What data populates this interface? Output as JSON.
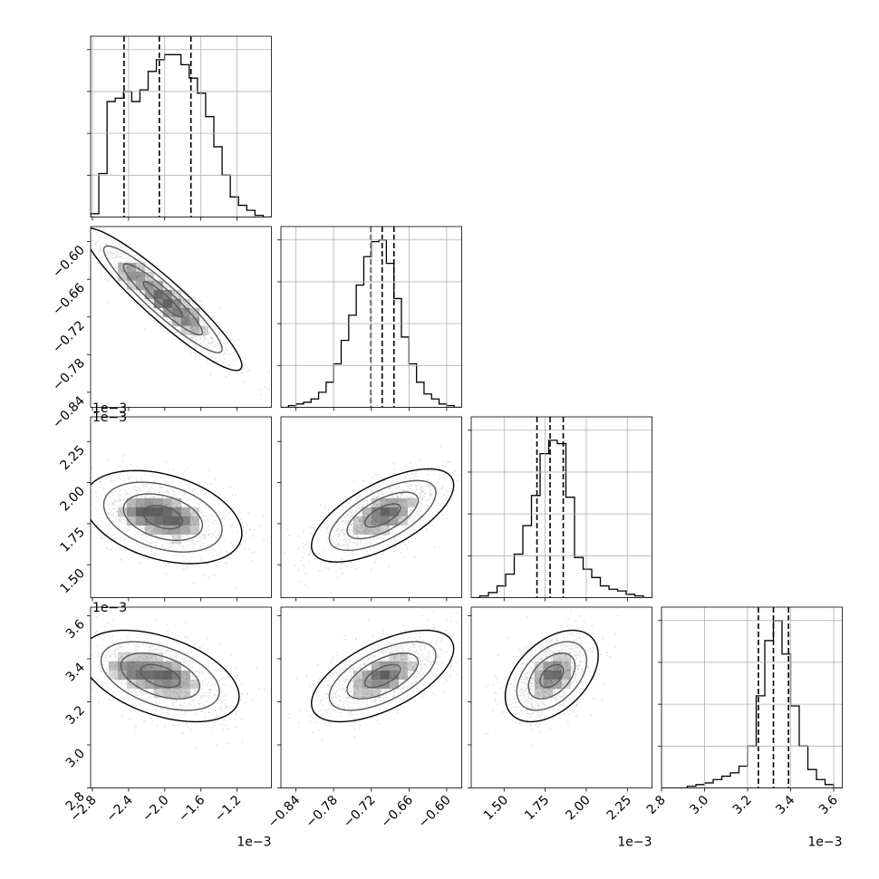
{
  "chart_data": {
    "type": "corner",
    "grid": true,
    "parameters": [
      {
        "range": [
          -2.82,
          -0.82
        ],
        "ticks": [
          -2.8,
          -2.4,
          -2.0,
          -1.6,
          -1.2
        ],
        "tick_labels": [
          "−2.8",
          "−2.4",
          "−2.0",
          "−1.6",
          "−1.2"
        ],
        "offset_label": "1e−3",
        "quantiles": [
          -2.45,
          -2.06,
          -1.71
        ],
        "hist": [
          0.02,
          0.26,
          0.69,
          0.71,
          0.75,
          0.69,
          0.76,
          0.87,
          0.94,
          0.97,
          0.97,
          0.91,
          0.83,
          0.74,
          0.6,
          0.42,
          0.25,
          0.12,
          0.07,
          0.04,
          0.01,
          0.0
        ],
        "ylim": [
          0,
          1.08
        ]
      },
      {
        "range": [
          -0.864,
          -0.576
        ],
        "ticks": [
          -0.84,
          -0.78,
          -0.72,
          -0.66,
          -0.6
        ],
        "tick_labels": [
          "−0.84",
          "−0.78",
          "−0.72",
          "−0.66",
          "−0.60"
        ],
        "offset_label": "",
        "quantiles": [
          -0.7206,
          -0.7027,
          -0.6839
        ],
        "hist": [
          0.0,
          0.01,
          0.02,
          0.03,
          0.05,
          0.09,
          0.15,
          0.26,
          0.4,
          0.55,
          0.73,
          0.9,
          0.99,
          1.0,
          0.86,
          0.65,
          0.42,
          0.26,
          0.15,
          0.08,
          0.05,
          0.02,
          0.01,
          0.0
        ],
        "ylim": [
          0,
          1.08
        ]
      },
      {
        "range": [
          1.3,
          2.4
        ],
        "ticks": [
          1.5,
          1.75,
          2.0,
          2.25
        ],
        "tick_labels": [
          "1.50",
          "1.75",
          "2.00",
          "2.25"
        ],
        "offset_label": "1e−3",
        "quantiles": [
          1.7,
          1.78,
          1.86
        ],
        "hist": [
          0.0,
          0.01,
          0.03,
          0.07,
          0.14,
          0.26,
          0.43,
          0.61,
          0.86,
          0.94,
          0.92,
          0.6,
          0.24,
          0.17,
          0.12,
          0.07,
          0.05,
          0.04,
          0.02,
          0.01,
          0.0
        ],
        "ylim": [
          0,
          1.08
        ]
      },
      {
        "range": [
          2.8,
          3.64
        ],
        "ticks": [
          2.8,
          3.0,
          3.2,
          3.4,
          3.6
        ],
        "tick_labels": [
          "2.8",
          "3.0",
          "3.2",
          "3.4",
          "3.6"
        ],
        "offset_label": "1e−3",
        "quantiles": [
          3.25,
          3.32,
          3.39
        ],
        "hist": [
          0.0,
          0.0,
          0.0,
          0.01,
          0.02,
          0.03,
          0.05,
          0.07,
          0.09,
          0.13,
          0.25,
          0.55,
          0.88,
          1.0,
          0.8,
          0.49,
          0.25,
          0.11,
          0.05,
          0.02,
          0.0
        ],
        "ylim": [
          0,
          1.08
        ]
      }
    ],
    "hist_yticks": [
      0.0,
      0.25,
      0.5,
      0.75,
      1.0
    ],
    "pairs": [
      {
        "row": 1,
        "col": 0,
        "center": [
          -2.02,
          -0.692
        ],
        "sigma": [
          0.37,
          0.048
        ],
        "rho": -0.93,
        "modes": [
          [
            -2.0,
            -0.692
          ],
          [
            -2.4,
            -0.65
          ],
          [
            -1.7,
            -0.72
          ]
        ]
      },
      {
        "row": 2,
        "col": 0,
        "center": [
          -2.02,
          1.79
        ],
        "sigma": [
          0.37,
          0.12
        ],
        "rho": -0.35,
        "modes": [
          [
            -2.3,
            1.82
          ],
          [
            -2.1,
            1.82
          ],
          [
            -1.85,
            1.77
          ]
        ]
      },
      {
        "row": 2,
        "col": 1,
        "center": [
          -0.702,
          1.8
        ],
        "sigma": [
          0.048,
          0.12
        ],
        "rho": 0.65,
        "modes": [
          [
            -0.695,
            1.81
          ]
        ]
      },
      {
        "row": 3,
        "col": 0,
        "center": [
          -2.05,
          3.32
        ],
        "sigma": [
          0.37,
          0.09
        ],
        "rho": -0.45,
        "modes": [
          [
            -2.5,
            3.36
          ],
          [
            -2.3,
            3.33
          ],
          [
            -1.95,
            3.32
          ]
        ]
      },
      {
        "row": 3,
        "col": 1,
        "center": [
          -0.702,
          3.32
        ],
        "sigma": [
          0.048,
          0.09
        ],
        "rho": 0.6,
        "modes": [
          [
            -0.7,
            3.32
          ]
        ]
      },
      {
        "row": 3,
        "col": 2,
        "center": [
          1.79,
          3.32
        ],
        "sigma": [
          0.12,
          0.09
        ],
        "rho": 0.45,
        "modes": [
          [
            1.8,
            3.33
          ]
        ]
      }
    ],
    "pair_yticks": {
      "1": {
        "ticks": [
          -0.84,
          -0.78,
          -0.72,
          -0.66,
          -0.6
        ],
        "tick_labels": [
          "−0.84",
          "−0.78",
          "−0.72",
          "−0.66",
          "−0.60"
        ]
      },
      "2": {
        "ticks": [
          1.5,
          1.75,
          2.0,
          2.25
        ],
        "tick_labels": [
          "1.50",
          "1.75",
          "2.00",
          "2.25"
        ]
      },
      "3": {
        "ticks": [
          2.8,
          3.0,
          3.2,
          3.4,
          3.6
        ],
        "tick_labels": [
          "2.8",
          "3.0",
          "3.2",
          "3.4",
          "3.6"
        ]
      }
    },
    "pair_offset_labels": {
      "2": "1e−3",
      "3": "1e−3"
    },
    "contour_levels_sigma": [
      0.5,
      1.0,
      1.5,
      2.0
    ]
  }
}
